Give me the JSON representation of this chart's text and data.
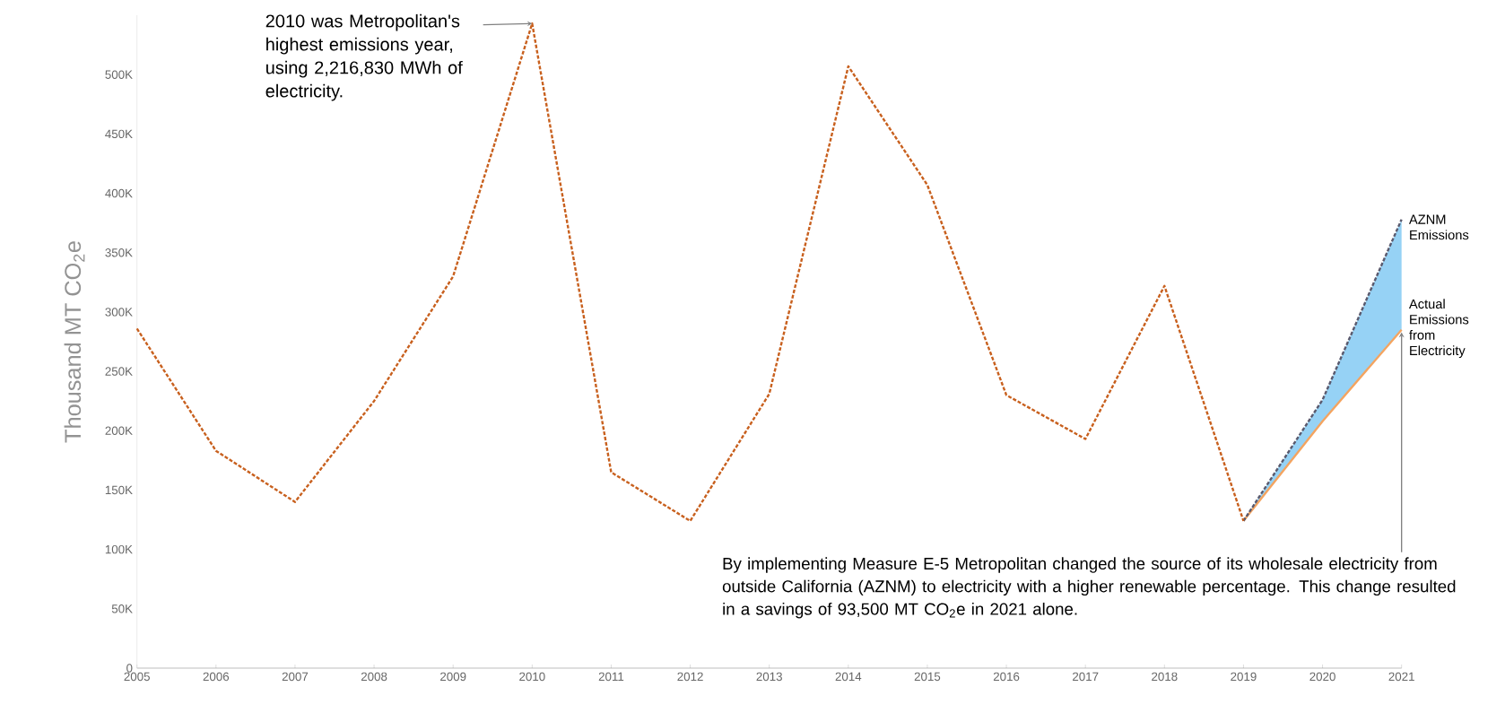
{
  "chart_data": {
    "type": "line",
    "ylabel": "Thousand MT CO$_{2}$e",
    "x": [
      2005,
      2006,
      2007,
      2008,
      2009,
      2010,
      2011,
      2012,
      2013,
      2014,
      2015,
      2016,
      2017,
      2018,
      2019
    ],
    "series": [
      {
        "color": "#c8601e",
        "line_style": "dashed",
        "values": [
          286000,
          183000,
          140000,
          225000,
          330000,
          543000,
          165000,
          124000,
          231000,
          507000,
          407000,
          230000,
          193000,
          322000,
          124000
        ]
      },
      {
        "name": "AZNM Emissions",
        "color": "#5a5a6e",
        "line_style": "dashed",
        "x": [
          2019,
          2020,
          2021
        ],
        "values": [
          124000,
          226000,
          378000
        ],
        "lower": [
          124000,
          208000,
          285000
        ],
        "upper": [
          124000,
          226000,
          378000
        ]
      },
      {
        "name": "Actual Emissions from Electricity",
        "color": "#f4a460",
        "line_style": "solid",
        "x": [
          2019,
          2020,
          2021
        ],
        "values": [
          124000,
          208000,
          285000
        ]
      }
    ],
    "xlim": [
      2005,
      2021
    ],
    "xticks": [
      2005,
      2006,
      2007,
      2008,
      2009,
      2010,
      2011,
      2012,
      2013,
      2014,
      2015,
      2016,
      2017,
      2018,
      2019,
      2020,
      2021
    ],
    "ylim": [
      0,
      550000
    ],
    "yticks": [
      0,
      {
        "value": 50000,
        "label": "50K"
      },
      {
        "value": 100000,
        "label": "100K"
      },
      {
        "value": 150000,
        "label": "150K"
      },
      {
        "value": 200000,
        "label": "200K"
      },
      {
        "value": 250000,
        "label": "250K"
      },
      {
        "value": 300000,
        "label": "300K"
      },
      {
        "value": 350000,
        "label": "350K"
      },
      {
        "value": 400000,
        "label": "400K"
      },
      {
        "value": 450000,
        "label": "450K"
      },
      {
        "value": 500000,
        "label": "500K"
      }
    ],
    "grid": false,
    "marker": "none",
    "annotations": [
      {
        "text": "2010 was Metropolitan's highest emissions year, using 2,216,830 MWh of electricity.",
        "x": 2010,
        "y": 543000
      },
      {
        "text": "By implementing Measure E-5 Metropolitan changed the source of its wholesale electricity from outside California (AZNM) to electricity with a higher renewable percentage. This change resulted in a savings of 93,500 MT CO$_{2}$e in 2021 alone.",
        "x": 2021,
        "y": 285000
      }
    ]
  }
}
